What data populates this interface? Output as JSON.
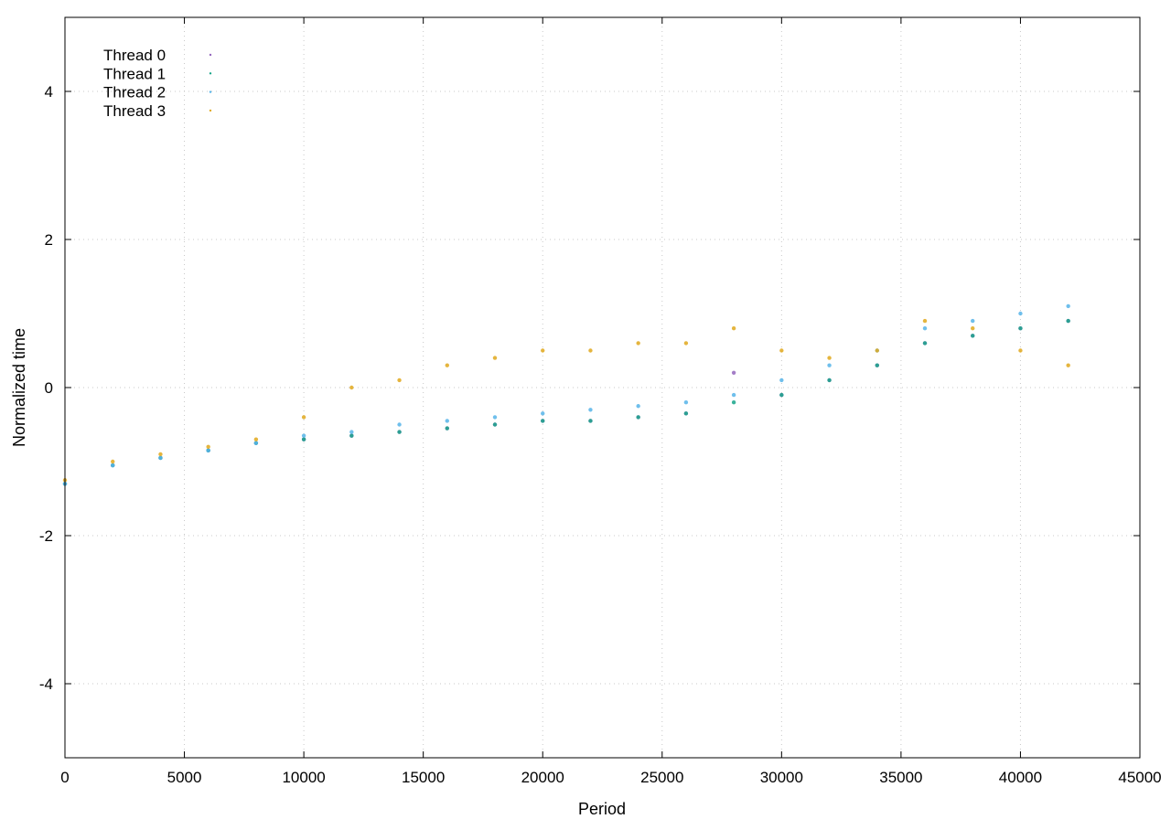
{
  "chart_data": {
    "type": "scatter",
    "title": "",
    "xlabel": "Period",
    "ylabel": "Normalized time",
    "xlim": [
      0,
      45000
    ],
    "ylim": [
      -5,
      5
    ],
    "xticks": [
      0,
      5000,
      10000,
      15000,
      20000,
      25000,
      30000,
      35000,
      40000,
      45000
    ],
    "yticks": [
      -4,
      -2,
      0,
      2,
      4
    ],
    "x_tick_labels": [
      "0",
      "5000",
      "10000",
      "15000",
      "20000",
      "25000",
      "30000",
      "35000",
      "40000",
      "45000"
    ],
    "y_tick_labels": [
      "-4",
      "-2",
      "0",
      "2",
      "4"
    ],
    "grid": true,
    "legend_position": "top-left",
    "series": [
      {
        "name": "Thread 0",
        "color": "#9467bd",
        "x": [
          0,
          2000,
          4000,
          6000,
          8000,
          10000,
          12000,
          14000,
          16000,
          18000,
          20000,
          22000,
          24000,
          26000,
          28000,
          30000,
          32000,
          34000,
          36000,
          38000,
          40000,
          42000
        ],
        "y": [
          -1.3,
          -1.05,
          -0.95,
          -0.85,
          -0.75,
          -0.7,
          -0.65,
          -0.6,
          -0.55,
          -0.5,
          -0.45,
          -0.45,
          -0.4,
          -0.35,
          0.2,
          -0.1,
          0.1,
          0.3,
          0.6,
          0.7,
          0.8,
          0.9
        ]
      },
      {
        "name": "Thread 1",
        "color": "#17a589",
        "x": [
          0,
          2000,
          4000,
          6000,
          8000,
          10000,
          12000,
          14000,
          16000,
          18000,
          20000,
          22000,
          24000,
          26000,
          28000,
          30000,
          32000,
          34000,
          36000,
          38000,
          40000,
          42000
        ],
        "y": [
          -1.3,
          -1.05,
          -0.95,
          -0.85,
          -0.75,
          -0.7,
          -0.65,
          -0.6,
          -0.55,
          -0.5,
          -0.45,
          -0.45,
          -0.4,
          -0.35,
          -0.2,
          -0.1,
          0.1,
          0.3,
          0.6,
          0.7,
          0.8,
          0.9
        ]
      },
      {
        "name": "Thread 2",
        "color": "#56b4e9",
        "x": [
          0,
          2000,
          4000,
          6000,
          8000,
          10000,
          12000,
          14000,
          16000,
          18000,
          20000,
          22000,
          24000,
          26000,
          28000,
          30000,
          32000,
          34000,
          36000,
          38000,
          40000,
          42000
        ],
        "y": [
          -1.3,
          -1.05,
          -0.95,
          -0.85,
          -0.75,
          -0.65,
          -0.6,
          -0.5,
          -0.45,
          -0.4,
          -0.35,
          -0.3,
          -0.25,
          -0.2,
          -0.1,
          0.1,
          0.3,
          0.5,
          0.8,
          0.9,
          1.0,
          1.1
        ]
      },
      {
        "name": "Thread 3",
        "color": "#e0a81c",
        "x": [
          0,
          2000,
          4000,
          6000,
          8000,
          10000,
          12000,
          14000,
          16000,
          18000,
          20000,
          22000,
          24000,
          26000,
          28000,
          30000,
          32000,
          34000,
          36000,
          38000,
          40000,
          42000
        ],
        "y": [
          -1.25,
          -1.0,
          -0.9,
          -0.8,
          -0.7,
          -0.4,
          0.0,
          0.1,
          0.3,
          0.4,
          0.5,
          0.5,
          0.6,
          0.6,
          0.8,
          0.5,
          0.4,
          0.5,
          0.9,
          0.8,
          0.5,
          0.3
        ]
      }
    ]
  }
}
